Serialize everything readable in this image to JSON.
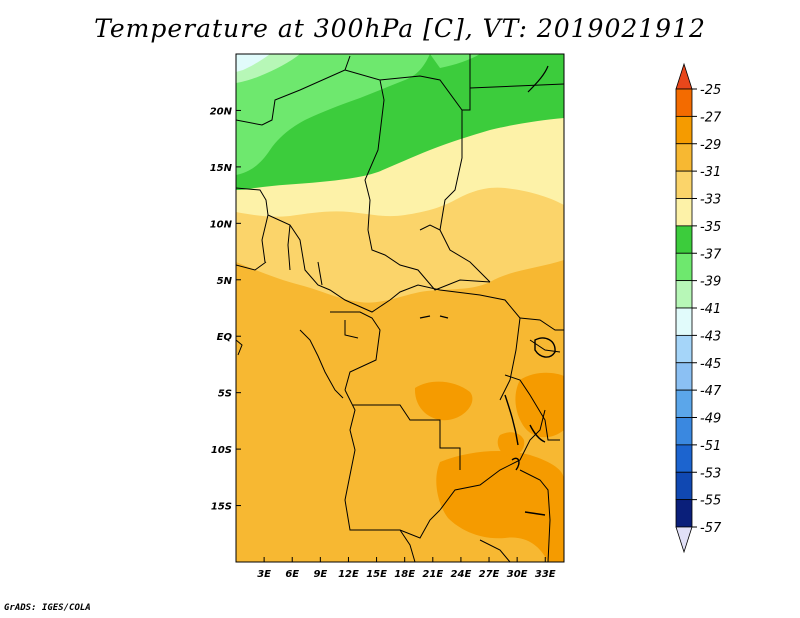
{
  "title": "Temperature at 300hPa [C], VT: 2019021912",
  "credit": "GrADS: IGES/COLA",
  "map": {
    "lon_range": [
      0,
      35
    ],
    "lat_range": [
      -20,
      25
    ],
    "lat_ticks": [
      "20N",
      "15N",
      "10N",
      "5N",
      "EQ",
      "5S",
      "10S",
      "15S"
    ],
    "lat_tick_values": [
      20,
      15,
      10,
      5,
      0,
      -5,
      -10,
      -15
    ],
    "lon_ticks": [
      "3E",
      "6E",
      "9E",
      "12E",
      "15E",
      "18E",
      "21E",
      "24E",
      "27E",
      "30E",
      "33E"
    ],
    "lon_tick_values": [
      3,
      6,
      9,
      12,
      15,
      18,
      21,
      24,
      27,
      30,
      33
    ]
  },
  "colorbar": {
    "labels": [
      "-25",
      "-27",
      "-29",
      "-31",
      "-33",
      "-35",
      "-37",
      "-39",
      "-41",
      "-43",
      "-45",
      "-47",
      "-49",
      "-51",
      "-53",
      "-55",
      "-57"
    ],
    "colors": [
      "#e8471b",
      "#f36b00",
      "#f59b00",
      "#f7b832",
      "#fbd46a",
      "#fdf2a8",
      "#3ccc3c",
      "#6ee86e",
      "#b7f7b7",
      "#e1fbfb",
      "#a5d5f9",
      "#8bc0f3",
      "#5ba6ea",
      "#3a88e0",
      "#1c64cf",
      "#1048b2",
      "#0a1f7a"
    ],
    "top_arrow_color": "#e8471b",
    "bottom_arrow_color": "#e1e0f7"
  }
}
